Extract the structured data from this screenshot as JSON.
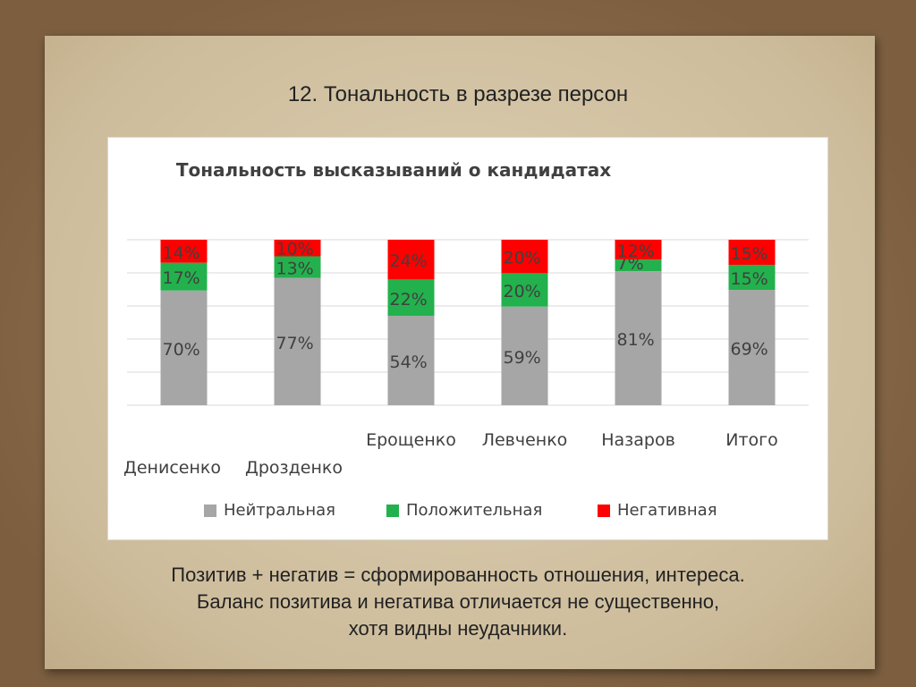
{
  "slide": {
    "title": "12. Тональность в разрезе персон",
    "caption_lines": [
      "Позитив + негатив = сформированность отношения, интереса.",
      "Баланс позитива и негатива отличается не существенно,",
      "хотя видны неудачники."
    ]
  },
  "colors": {
    "neutral": "#a6a6a6",
    "positive": "#23b14d",
    "negative": "#ff0000"
  },
  "chart_data": {
    "type": "bar",
    "stacked": true,
    "percent_stacked": true,
    "title": "Тональность высказываний о кандидатах",
    "categories": [
      "Денисенко",
      "Дрозденко",
      "Ерощенко",
      "Левченко",
      "Назаров",
      "Итого"
    ],
    "series": [
      {
        "name": "Нейтральная",
        "color": "#a6a6a6",
        "values": [
          70,
          77,
          54,
          59,
          81,
          69
        ],
        "labels": [
          "70%",
          "77%",
          "54%",
          "59%",
          "81%",
          "69%"
        ]
      },
      {
        "name": "Положительная",
        "color": "#23b14d",
        "values": [
          17,
          13,
          22,
          20,
          7,
          15
        ],
        "labels": [
          "17%",
          "13%",
          "22%",
          "20%",
          "7%",
          "15%"
        ]
      },
      {
        "name": "Негативная",
        "color": "#ff0000",
        "values": [
          14,
          10,
          24,
          20,
          12,
          15
        ],
        "labels": [
          "14%",
          "10%",
          "24%",
          "20%",
          "12%",
          "15%"
        ]
      }
    ],
    "legend_position": "bottom",
    "grid": true
  }
}
